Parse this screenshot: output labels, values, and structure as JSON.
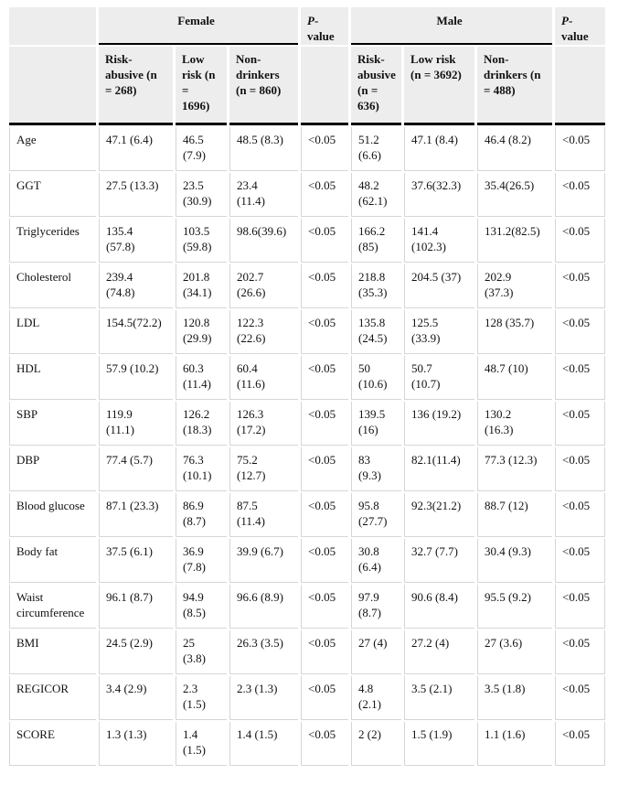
{
  "colors": {
    "header_background": "#ededed",
    "grid_line": "#d6d6d6",
    "rule_line": "#000000",
    "text": "#111111"
  },
  "header": {
    "corner_label": "",
    "female_label": "Female",
    "male_label": "Male",
    "p_italic": "P",
    "p_rest": "-value",
    "female_cols": [
      "Risk-abusive (n = 268)",
      "Low risk (n = 1696)",
      "Non-drinkers (n = 860)"
    ],
    "male_cols": [
      "Risk-abusive (n = 636)",
      "Low risk (n = 3692)",
      "Non-drinkers (n = 488)"
    ]
  },
  "rows": [
    {
      "label": "Age",
      "f": [
        "47.1 (6.4)",
        "46.5 (7.9)",
        "48.5 (8.3)"
      ],
      "fp": "<0.05",
      "m": [
        "51.2 (6.6)",
        "47.1 (8.4)",
        "46.4 (8.2)"
      ],
      "mp": "<0.05"
    },
    {
      "label": "GGT",
      "f": [
        "27.5 (13.3)",
        "23.5 (30.9)",
        "23.4 (11.4)"
      ],
      "fp": "<0.05",
      "m": [
        "48.2 (62.1)",
        "37.6(32.3)",
        "35.4(26.5)"
      ],
      "mp": "<0.05"
    },
    {
      "label": "Triglycerides",
      "f": [
        "135.4 (57.8)",
        "103.5 (59.8)",
        "98.6(39.6)"
      ],
      "fp": "<0.05",
      "m": [
        "166.2 (85)",
        "141.4 (102.3)",
        "131.2(82.5)"
      ],
      "mp": "<0.05"
    },
    {
      "label": "Cholesterol",
      "f": [
        "239.4 (74.8)",
        "201.8 (34.1)",
        "202.7 (26.6)"
      ],
      "fp": "<0.05",
      "m": [
        "218.8 (35.3)",
        "204.5 (37)",
        "202.9 (37.3)"
      ],
      "mp": "<0.05"
    },
    {
      "label": "LDL",
      "f": [
        "154.5(72.2)",
        "120.8 (29.9)",
        "122.3 (22.6)"
      ],
      "fp": "<0.05",
      "m": [
        "135.8 (24.5)",
        "125.5 (33.9)",
        "128 (35.7)"
      ],
      "mp": "<0.05"
    },
    {
      "label": "HDL",
      "f": [
        "57.9 (10.2)",
        "60.3 (11.4)",
        "60.4 (11.6)"
      ],
      "fp": "<0.05",
      "m": [
        "50 (10.6)",
        "50.7 (10.7)",
        "48.7 (10)"
      ],
      "mp": "<0.05"
    },
    {
      "label": "SBP",
      "f": [
        "119.9 (11.1)",
        "126.2 (18.3)",
        "126.3 (17.2)"
      ],
      "fp": "<0.05",
      "m": [
        "139.5 (16)",
        "136 (19.2)",
        "130.2 (16.3)"
      ],
      "mp": "<0.05"
    },
    {
      "label": "DBP",
      "f": [
        "77.4 (5.7)",
        "76.3 (10.1)",
        "75.2 (12.7)"
      ],
      "fp": "<0.05",
      "m": [
        "83 (9.3)",
        "82.1(11.4)",
        "77.3 (12.3)"
      ],
      "mp": "<0.05"
    },
    {
      "label": "Blood glucose",
      "f": [
        "87.1 (23.3)",
        "86.9 (8.7)",
        "87.5 (11.4)"
      ],
      "fp": "<0.05",
      "m": [
        "95.8 (27.7)",
        "92.3(21.2)",
        "88.7 (12)"
      ],
      "mp": "<0.05"
    },
    {
      "label": "Body fat",
      "f": [
        "37.5 (6.1)",
        "36.9 (7.8)",
        "39.9 (6.7)"
      ],
      "fp": "<0.05",
      "m": [
        "30.8 (6.4)",
        "32.7 (7.7)",
        "30.4 (9.3)"
      ],
      "mp": "<0.05"
    },
    {
      "label": "Waist circumference",
      "f": [
        "96.1 (8.7)",
        "94.9 (8.5)",
        "96.6 (8.9)"
      ],
      "fp": "<0.05",
      "m": [
        "97.9 (8.7)",
        "90.6 (8.4)",
        "95.5 (9.2)"
      ],
      "mp": "<0.05"
    },
    {
      "label": "BMI",
      "f": [
        "24.5 (2.9)",
        "25 (3.8)",
        "26.3 (3.5)"
      ],
      "fp": "<0.05",
      "m": [
        "27 (4)",
        "27.2 (4)",
        "27 (3.6)"
      ],
      "mp": "<0.05"
    },
    {
      "label": "REGICOR",
      "f": [
        "3.4 (2.9)",
        "2.3 (1.5)",
        "2.3 (1.3)"
      ],
      "fp": "<0.05",
      "m": [
        "4.8 (2.1)",
        "3.5 (2.1)",
        "3.5 (1.8)"
      ],
      "mp": "<0.05"
    },
    {
      "label": "SCORE",
      "f": [
        "1.3 (1.3)",
        "1.4 (1.5)",
        "1.4 (1.5)"
      ],
      "fp": "<0.05",
      "m": [
        "2 (2)",
        "1.5 (1.9)",
        "1.1 (1.6)"
      ],
      "mp": "<0.05"
    }
  ]
}
